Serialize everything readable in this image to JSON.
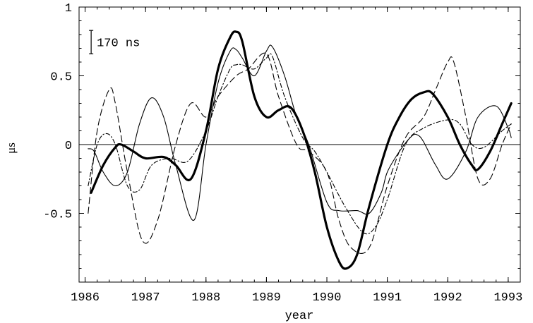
{
  "chart_data": {
    "type": "line",
    "title": "",
    "xlabel": "year",
    "ylabel": "μs",
    "xlim": [
      1985.9,
      1993.2
    ],
    "ylim": [
      -1.0,
      1.0
    ],
    "xticks": [
      1986,
      1987,
      1988,
      1989,
      1990,
      1991,
      1992,
      1993
    ],
    "yticks": [
      {
        "value": 1,
        "label": "1"
      },
      {
        "value": 0.5,
        "label": "0.5"
      },
      {
        "value": 0,
        "label": "0"
      },
      {
        "value": -0.5,
        "label": "-0.5"
      }
    ],
    "grid": false,
    "zero_line": true,
    "scale_bar": {
      "label": "170 ns",
      "length_us": 0.17,
      "anchor_x": 1986.1,
      "anchor_y": 0.745
    },
    "series": [
      {
        "style": "thick",
        "x": [
          1986.1,
          1986.3,
          1986.5,
          1986.6,
          1986.8,
          1987.0,
          1987.3,
          1987.5,
          1987.75,
          1988.0,
          1988.2,
          1988.4,
          1988.5,
          1988.6,
          1988.8,
          1989.0,
          1989.2,
          1989.4,
          1989.6,
          1989.8,
          1990.0,
          1990.2,
          1990.33,
          1990.5,
          1990.7,
          1991.0,
          1991.2,
          1991.4,
          1991.6,
          1991.75,
          1992.0,
          1992.2,
          1992.4,
          1992.5,
          1992.7,
          1992.9,
          1993.05
        ],
        "y": [
          -0.35,
          -0.15,
          -0.02,
          0.0,
          -0.05,
          -0.1,
          -0.09,
          -0.15,
          -0.25,
          0.1,
          0.55,
          0.78,
          0.82,
          0.75,
          0.35,
          0.2,
          0.25,
          0.27,
          0.1,
          -0.2,
          -0.6,
          -0.85,
          -0.9,
          -0.8,
          -0.45,
          0.0,
          0.2,
          0.33,
          0.38,
          0.37,
          0.2,
          0.0,
          -0.15,
          -0.18,
          -0.05,
          0.15,
          0.3
        ]
      },
      {
        "style": "thin",
        "x": [
          1986.05,
          1986.15,
          1986.3,
          1986.5,
          1986.7,
          1986.9,
          1987.1,
          1987.3,
          1987.5,
          1987.8,
          1988.0,
          1988.2,
          1988.4,
          1988.5,
          1988.6,
          1988.8,
          1989.0,
          1989.1,
          1989.3,
          1989.5,
          1989.7,
          1990.0,
          1990.2,
          1990.5,
          1990.7,
          1990.9,
          1991.0,
          1991.2,
          1991.4,
          1991.5,
          1991.6,
          1991.8,
          1992.0,
          1992.3,
          1992.5,
          1992.8,
          1993.0,
          1993.05
        ],
        "y": [
          -0.03,
          -0.05,
          -0.2,
          -0.3,
          -0.2,
          0.15,
          0.34,
          0.2,
          -0.15,
          -0.55,
          0.0,
          0.45,
          0.68,
          0.69,
          0.63,
          0.5,
          0.68,
          0.71,
          0.5,
          0.2,
          0.0,
          -0.42,
          -0.48,
          -0.48,
          -0.5,
          -0.35,
          -0.2,
          -0.05,
          0.06,
          0.07,
          0.02,
          -0.15,
          -0.25,
          -0.05,
          0.2,
          0.28,
          0.12,
          0.05
        ]
      },
      {
        "style": "dashed",
        "x": [
          1986.05,
          1986.2,
          1986.4,
          1986.5,
          1986.7,
          1986.95,
          1987.2,
          1987.5,
          1987.75,
          1988.0,
          1988.2,
          1988.5,
          1988.7,
          1989.0,
          1989.2,
          1989.5,
          1989.7,
          1990.0,
          1990.2,
          1990.4,
          1990.7,
          1991.0,
          1991.3,
          1991.6,
          1991.8,
          1992.0,
          1992.1,
          1992.3,
          1992.5,
          1992.7,
          1992.9,
          1993.05
        ],
        "y": [
          -0.5,
          0.1,
          0.4,
          0.3,
          -0.2,
          -0.7,
          -0.55,
          0.0,
          0.3,
          0.2,
          0.35,
          0.5,
          0.55,
          0.66,
          0.35,
          0.0,
          -0.05,
          -0.2,
          -0.55,
          -0.75,
          -0.75,
          -0.3,
          0.05,
          0.2,
          0.4,
          0.6,
          0.6,
          0.2,
          -0.25,
          -0.25,
          0.0,
          0.15
        ]
      },
      {
        "style": "dashdot",
        "x": [
          1986.05,
          1986.2,
          1986.35,
          1986.5,
          1986.7,
          1986.9,
          1987.1,
          1987.4,
          1987.7,
          1988.0,
          1988.2,
          1988.4,
          1988.5,
          1988.6,
          1988.8,
          1989.0,
          1989.1,
          1989.3,
          1989.6,
          1989.8,
          1990.0,
          1990.3,
          1990.6,
          1990.8,
          1991.0,
          1991.3,
          1991.6,
          1992.0,
          1992.2,
          1992.4,
          1992.6,
          1992.9,
          1993.05
        ],
        "y": [
          -0.3,
          0.0,
          0.08,
          0.0,
          -0.3,
          -0.33,
          -0.15,
          -0.1,
          -0.12,
          0.1,
          0.35,
          0.55,
          0.58,
          0.58,
          0.55,
          0.63,
          0.64,
          0.35,
          0.05,
          -0.05,
          -0.2,
          -0.45,
          -0.64,
          -0.6,
          -0.4,
          0.0,
          0.12,
          0.18,
          0.15,
          0.0,
          -0.02,
          0.1,
          0.15
        ]
      }
    ]
  }
}
